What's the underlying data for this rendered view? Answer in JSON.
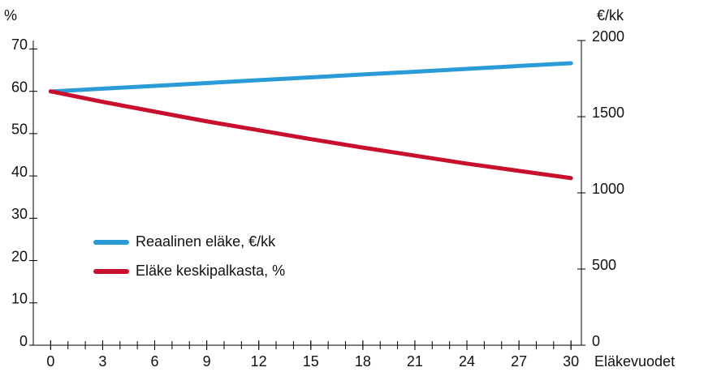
{
  "chart_data": {
    "type": "line",
    "y_unit": "%",
    "y2_unit": "€/kk",
    "x_label": "Eläkevuodet",
    "x": [
      0,
      3,
      6,
      9,
      12,
      15,
      18,
      21,
      24,
      27,
      30
    ],
    "series": [
      {
        "name": "Reaalinen eläke, €/kk",
        "color": "#2a9bd6",
        "axis": "y2",
        "values": [
          1665,
          1684,
          1702,
          1721,
          1740,
          1758,
          1777,
          1795,
          1814,
          1833,
          1851
        ]
      },
      {
        "name": "Eläke keskipalkasta, %",
        "color": "#c8102e",
        "values": [
          60,
          57.5,
          55.2,
          52.9,
          50.8,
          48.7,
          46.7,
          44.8,
          42.9,
          41.2,
          39.5
        ]
      }
    ],
    "xlim": [
      -1,
      30.6
    ],
    "xticks": [
      0,
      3,
      6,
      9,
      12,
      15,
      18,
      21,
      24,
      27,
      30
    ],
    "xminor_ticks": [
      0,
      1,
      2,
      3,
      4,
      5,
      6,
      7,
      8,
      9,
      10,
      11,
      12,
      13,
      14,
      15,
      16,
      17,
      18,
      19,
      20,
      21,
      22,
      23,
      24,
      25,
      26,
      27,
      28,
      29,
      30
    ],
    "ylim": [
      0,
      72
    ],
    "yticks": [
      0,
      10,
      20,
      30,
      40,
      50,
      60,
      70
    ],
    "y2lim": [
      0,
      2000
    ],
    "y2ticks": [
      0,
      500,
      1000,
      1500,
      2000
    ],
    "grid": false
  }
}
